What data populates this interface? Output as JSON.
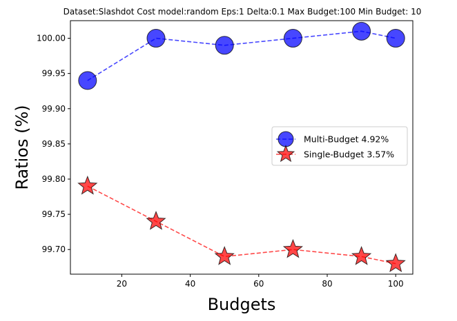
{
  "chart_data": {
    "type": "line",
    "title": "Dataset:Slashdot Cost model:random Eps:1 Delta:0.1 Max Budget:100 Min Budget: 10",
    "xlabel": "Budgets",
    "ylabel": "Ratios (%)",
    "x": [
      10,
      30,
      50,
      70,
      90,
      100
    ],
    "xlim": [
      5,
      105
    ],
    "ylim": [
      99.665,
      100.025
    ],
    "xticks": [
      "20",
      "40",
      "60",
      "80",
      "100"
    ],
    "yticks": [
      "99.70",
      "99.75",
      "99.80",
      "99.85",
      "99.90",
      "99.95",
      "100.00"
    ],
    "grid": false,
    "legend_position": "center-right",
    "series": [
      {
        "name": "Multi-Budget 4.92%",
        "values": [
          99.94,
          100.0,
          99.99,
          100.0,
          100.01,
          100.0
        ],
        "color": "#0000ff",
        "marker": "circle",
        "linestyle": "dashed"
      },
      {
        "name": "Single-Budget 3.57%",
        "values": [
          99.79,
          99.74,
          99.69,
          99.7,
          99.69,
          99.68
        ],
        "color": "#ff0000",
        "marker": "star",
        "linestyle": "dashed"
      }
    ]
  }
}
